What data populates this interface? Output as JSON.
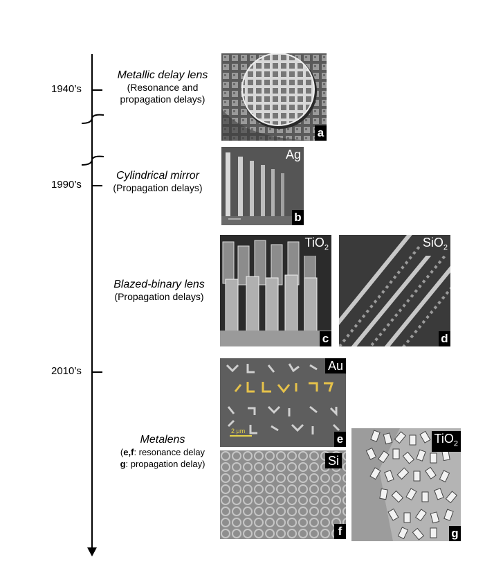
{
  "eras": [
    {
      "label": "1940’s"
    },
    {
      "label": "1990’s"
    },
    {
      "label": "2010’s"
    }
  ],
  "entries": [
    {
      "title": "Metallic delay lens",
      "subtitle_line1": "(Resonance and",
      "subtitle_line2": "propagation delays)"
    },
    {
      "title": "Cylindrical mirror",
      "subtitle_line1": "(Propagation delays)"
    },
    {
      "title": "Blazed-binary lens",
      "subtitle_line1": "(Propagation delays)"
    },
    {
      "title": "Metalens",
      "line1_bold": "e,f",
      "line1_rest": ": resonance delay",
      "line2_bold": "g",
      "line2_rest": ":  propagation delay)"
    }
  ],
  "panels": {
    "a": {
      "letter": "a"
    },
    "b": {
      "letter": "b",
      "material": "Ag"
    },
    "c": {
      "letter": "c",
      "material": "TiO",
      "material_sub": "2"
    },
    "d": {
      "letter": "d",
      "material": "SiO",
      "material_sub": "2"
    },
    "e": {
      "letter": "e",
      "material": "Au",
      "scale": "2 μm"
    },
    "f": {
      "letter": "f",
      "material": "Si"
    },
    "g": {
      "letter": "g",
      "material": "TiO",
      "material_sub": "2"
    }
  },
  "colors": {
    "highlight": "#e6c24a",
    "scale_bar": "#e6d34a"
  }
}
